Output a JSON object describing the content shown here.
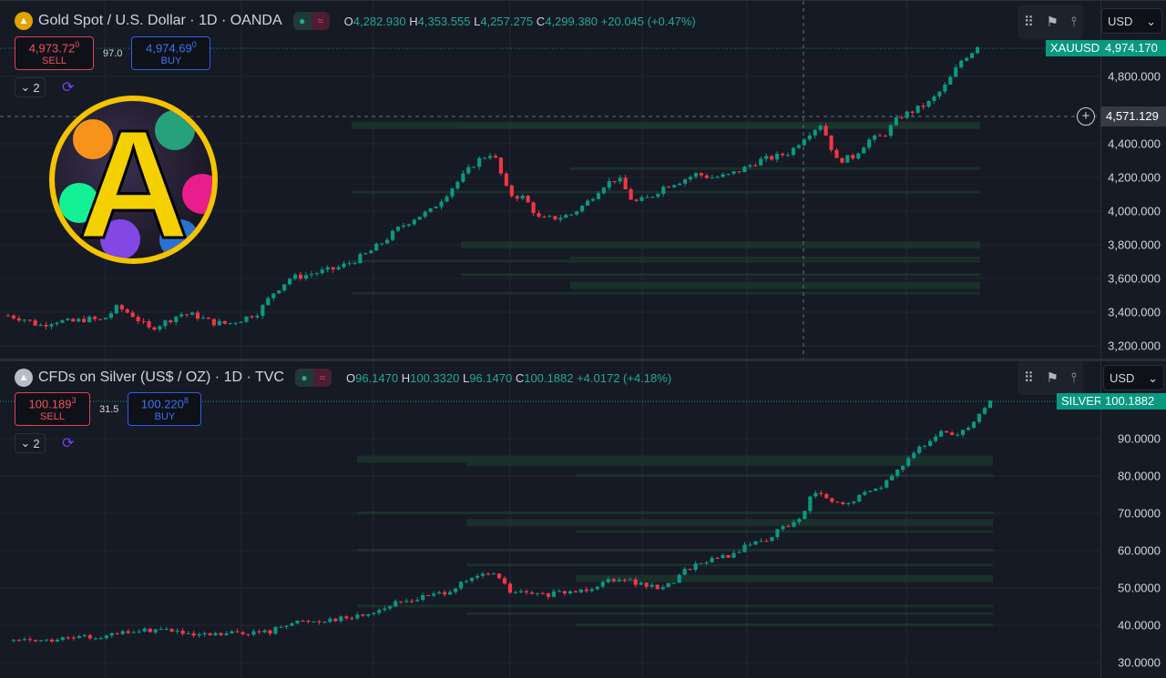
{
  "colors": {
    "up": "#089981",
    "down": "#f23645",
    "bg": "#161a25",
    "grid": "#222631",
    "zone": "#1c3a2c"
  },
  "charts": [
    {
      "symbol_icon": "gold-bars-icon",
      "title": "Gold Spot / U.S. Dollar · 1D · OANDA",
      "ohlc": {
        "o_label": "O",
        "o": "4,282.930",
        "h_label": "H",
        "h": "4,353.555",
        "l_label": "L",
        "l": "4,257.275",
        "c_label": "C",
        "c": "4,299.380",
        "change": "+20.045 (+0.47%)"
      },
      "sell": {
        "price": "4,973.72",
        "sup": "0",
        "label": "SELL"
      },
      "spread": "97.0",
      "buy": {
        "price": "4,974.69",
        "sup": "0",
        "label": "BUY"
      },
      "indicators_count": "2",
      "currency": "USD",
      "last_symbol": "XAUUSD",
      "last_price": "4,974.170",
      "crosshair_price": "4,571.129",
      "axis_ticks": [
        "4,800.000",
        "4,400.000",
        "4,200.000",
        "4,000.000",
        "3,800.000",
        "3,600.000",
        "3,400.000",
        "3,200.000"
      ],
      "chart_data": {
        "type": "candlestick",
        "ylim": [
          3200,
          4800
        ],
        "tick_values": [
          4800,
          4400,
          4200,
          4000,
          3800,
          3600,
          3400,
          3200
        ],
        "closes": [
          3380,
          3360,
          3320,
          3350,
          3340,
          3360,
          3350,
          3430,
          3380,
          3300,
          3340,
          3390,
          3380,
          3340,
          3330,
          3360,
          3400,
          3520,
          3600,
          3620,
          3640,
          3660,
          3700,
          3750,
          3820,
          3900,
          3960,
          4000,
          4100,
          4200,
          4300,
          4350,
          4100,
          4080,
          3950,
          3960,
          3980,
          4050,
          4150,
          4200,
          4050,
          4080,
          4150,
          4180,
          4220,
          4200,
          4210,
          4250,
          4300,
          4320,
          4350,
          4450,
          4520,
          4300,
          4320,
          4420,
          4450,
          4560,
          4600,
          4650,
          4750,
          4900,
          4974.17
        ],
        "zones": [
          4520,
          4500,
          4250,
          4110,
          3810,
          3720,
          3700,
          3620,
          3570,
          3510
        ]
      }
    },
    {
      "symbol_icon": "silver-bars-icon",
      "title": "CFDs on Silver (US$ / OZ) · 1D · TVC",
      "ohlc": {
        "o_label": "O",
        "o": "96.1470",
        "h_label": "H",
        "h": "100.3320",
        "l_label": "L",
        "l": "96.1470",
        "c_label": "C",
        "c": "100.1882",
        "change": "+4.0172 (+4.18%)"
      },
      "sell": {
        "price": "100.189",
        "sup": "3",
        "label": "SELL"
      },
      "spread": "31.5",
      "buy": {
        "price": "100.220",
        "sup": "8",
        "label": "BUY"
      },
      "indicators_count": "2",
      "currency": "USD",
      "last_symbol": "SILVER",
      "last_price": "100.1882",
      "axis_ticks": [
        "90.0000",
        "80.0000",
        "70.0000",
        "60.0000",
        "50.0000",
        "40.0000",
        "30.0000"
      ],
      "chart_data": {
        "type": "candlestick",
        "ylim": [
          30,
          90
        ],
        "tick_values": [
          90,
          80,
          70,
          60,
          50,
          40,
          30
        ],
        "closes": [
          36,
          36.2,
          35.8,
          36.3,
          36.5,
          37,
          37.2,
          38,
          38.5,
          39,
          38.6,
          37,
          37.2,
          37.5,
          38,
          38,
          38.2,
          40.5,
          41,
          41.2,
          41.8,
          42,
          43,
          44.5,
          46,
          47,
          48,
          49,
          51,
          53,
          54,
          49,
          48.5,
          48,
          48.5,
          49,
          50,
          52,
          53,
          51,
          50,
          51,
          55,
          57,
          58,
          59,
          62,
          63,
          66,
          68,
          76,
          73,
          72,
          75,
          77,
          80,
          86,
          88,
          92,
          91,
          95,
          100.19
        ],
        "zones": [
          85,
          83,
          80,
          70,
          68,
          65,
          60,
          56,
          53,
          45,
          43,
          40
        ]
      }
    }
  ]
}
